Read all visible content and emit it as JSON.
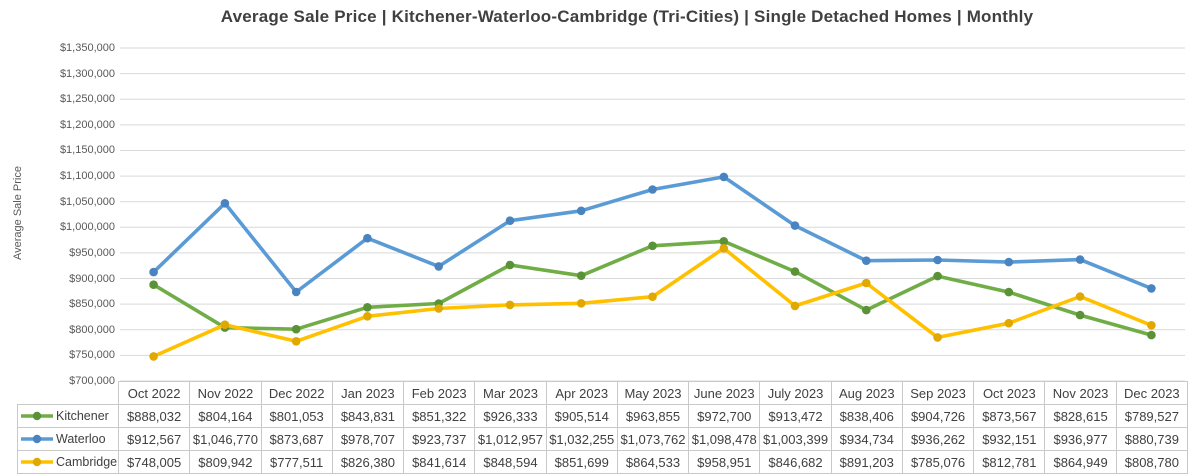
{
  "title": "Average Sale Price | Kitchener-Waterloo-Cambridge (Tri-Cities) | Single Detached Homes | Monthly",
  "chart_data": {
    "type": "line",
    "title": "Average Sale Price | Kitchener-Waterloo-Cambridge (Tri-Cities) | Single Detached Homes | Monthly",
    "xlabel": "",
    "ylabel": "Average Sale Price",
    "ylim": [
      700000,
      1350000
    ],
    "ytick_step": 50000,
    "ytick_format": "$#,##0",
    "grid": true,
    "legend_position": "table-left",
    "categories": [
      "Oct 2022",
      "Nov 2022",
      "Dec 2022",
      "Jan 2023",
      "Feb 2023",
      "Mar 2023",
      "Apr 2023",
      "May 2023",
      "June 2023",
      "July 2023",
      "Aug 2023",
      "Sep 2023",
      "Oct 2023",
      "Nov 2023",
      "Dec 2023"
    ],
    "series": [
      {
        "name": "Kitchener",
        "color": "#70AD47",
        "marker_color": "#5a9237",
        "values": [
          888032,
          804164,
          801053,
          843831,
          851322,
          926333,
          905514,
          963855,
          972700,
          913472,
          838406,
          904726,
          873567,
          828615,
          789527
        ]
      },
      {
        "name": "Waterloo",
        "color": "#5B9BD5",
        "marker_color": "#4a84c0",
        "values": [
          912567,
          1046770,
          873687,
          978707,
          923737,
          1012957,
          1032255,
          1073762,
          1098478,
          1003399,
          934734,
          936262,
          932151,
          936977,
          880739
        ]
      },
      {
        "name": "Cambridge",
        "color": "#FFC000",
        "marker_color": "#e0a800",
        "values": [
          748005,
          809942,
          777511,
          826380,
          841614,
          848594,
          851699,
          864533,
          958951,
          846682,
          891203,
          785076,
          812781,
          864949,
          808780
        ]
      }
    ],
    "value_prefix": "$"
  },
  "colors": {
    "title_text": "#404040",
    "axis_text": "#595959",
    "gridline": "#D9D9D9",
    "table_border": "#C9C9C9",
    "table_text": "#404040",
    "background": "#FFFFFF"
  }
}
